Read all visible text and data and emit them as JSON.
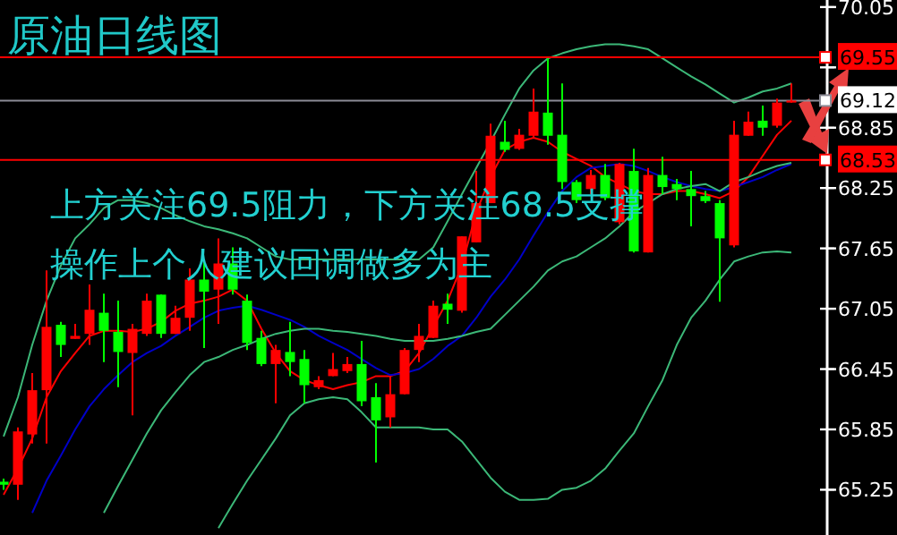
{
  "chart_data": {
    "type": "candlestick",
    "title": "原油日线图",
    "annotations": [
      "上方关注69.5阻力，下方关注68.5支撑",
      "操作上个人建议回调做多为主"
    ],
    "categories": [
      null,
      null,
      null,
      null,
      null,
      null,
      null,
      null,
      null,
      null,
      null,
      null,
      null,
      null,
      null,
      null,
      null,
      null,
      null,
      null,
      null,
      null,
      null,
      null,
      null,
      null,
      null,
      null,
      null,
      null,
      null,
      null,
      null,
      null,
      null,
      null,
      null,
      null,
      null,
      null,
      null,
      null,
      null,
      null,
      null,
      null,
      null,
      null,
      null,
      null,
      null,
      null,
      null,
      null,
      null,
      null
    ],
    "ohlc": [
      [
        65.33,
        65.36,
        65.25,
        65.3
      ],
      [
        65.3,
        65.87,
        65.15,
        65.83
      ],
      [
        65.8,
        66.41,
        65.71,
        66.24
      ],
      [
        66.24,
        67.43,
        65.71,
        66.87
      ],
      [
        66.89,
        66.92,
        66.57,
        66.69
      ],
      [
        66.75,
        66.9,
        66.75,
        66.78
      ],
      [
        66.8,
        67.29,
        66.69,
        67.04
      ],
      [
        67.01,
        67.2,
        66.52,
        66.83
      ],
      [
        66.82,
        67.13,
        66.27,
        66.62
      ],
      [
        66.61,
        66.9,
        65.99,
        66.85
      ],
      [
        66.8,
        67.2,
        66.78,
        67.13
      ],
      [
        67.19,
        67.19,
        66.76,
        66.8
      ],
      [
        66.8,
        67.08,
        66.8,
        66.96
      ],
      [
        66.96,
        67.45,
        66.83,
        67.34
      ],
      [
        67.34,
        67.54,
        66.66,
        67.22
      ],
      [
        67.24,
        67.75,
        66.9,
        67.5
      ],
      [
        67.5,
        67.66,
        67.19,
        67.24
      ],
      [
        67.13,
        67.19,
        66.64,
        66.71
      ],
      [
        66.76,
        66.83,
        66.48,
        66.5
      ],
      [
        66.5,
        66.69,
        66.11,
        66.64
      ],
      [
        66.62,
        66.92,
        66.38,
        66.52
      ],
      [
        66.55,
        66.64,
        66.11,
        66.29
      ],
      [
        66.27,
        66.38,
        66.25,
        66.34
      ],
      [
        66.38,
        66.61,
        66.38,
        66.45
      ],
      [
        66.43,
        66.57,
        66.41,
        66.5
      ],
      [
        66.5,
        66.73,
        66.08,
        66.13
      ],
      [
        66.17,
        66.31,
        65.52,
        65.94
      ],
      [
        65.97,
        66.38,
        65.87,
        66.2
      ],
      [
        66.2,
        66.66,
        66.2,
        66.64
      ],
      [
        66.64,
        66.9,
        66.52,
        66.78
      ],
      [
        66.76,
        67.13,
        66.76,
        67.08
      ],
      [
        67.1,
        67.2,
        66.9,
        67.04
      ],
      [
        67.03,
        67.77,
        67.01,
        67.77
      ],
      [
        67.71,
        68.42,
        67.71,
        68.1
      ],
      [
        68.1,
        68.89,
        68.1,
        68.77
      ],
      [
        68.71,
        68.92,
        68.61,
        68.63
      ],
      [
        68.64,
        68.84,
        68.63,
        68.78
      ],
      [
        68.77,
        69.24,
        68.75,
        69.01
      ],
      [
        69.0,
        69.54,
        68.68,
        68.77
      ],
      [
        68.78,
        69.29,
        68.24,
        68.31
      ],
      [
        68.31,
        68.33,
        68.1,
        68.13
      ],
      [
        68.24,
        68.43,
        68.19,
        68.38
      ],
      [
        68.38,
        68.49,
        68.13,
        68.15
      ],
      [
        67.91,
        68.5,
        67.89,
        68.49
      ],
      [
        68.42,
        68.64,
        67.61,
        67.62
      ],
      [
        67.61,
        68.45,
        67.61,
        68.38
      ],
      [
        68.38,
        68.56,
        68.19,
        68.26
      ],
      [
        68.29,
        68.34,
        68.13,
        68.24
      ],
      [
        68.24,
        68.42,
        67.87,
        68.17
      ],
      [
        68.17,
        68.22,
        68.1,
        68.12
      ],
      [
        68.1,
        68.13,
        67.12,
        67.75
      ],
      [
        67.68,
        68.92,
        67.66,
        68.78
      ],
      [
        68.77,
        69.01,
        68.77,
        68.91
      ],
      [
        68.92,
        69.07,
        68.77,
        68.85
      ],
      [
        68.87,
        69.14,
        68.85,
        69.1
      ],
      [
        69.1,
        69.29,
        69.1,
        69.12
      ]
    ],
    "colors": [
      "#00ff00",
      "#ff0000",
      "#ff0000",
      "#ff0000",
      "#00ff00",
      "#ff0000",
      "#ff0000",
      "#00ff00",
      "#00ff00",
      "#ff0000",
      "#ff0000",
      "#00ff00",
      "#ff0000",
      "#ff0000",
      "#00ff00",
      "#ff0000",
      "#00ff00",
      "#00ff00",
      "#00ff00",
      "#ff0000",
      "#00ff00",
      "#00ff00",
      "#ff0000",
      "#ff0000",
      "#ff0000",
      "#00ff00",
      "#00ff00",
      "#ff0000",
      "#ff0000",
      "#ff0000",
      "#ff0000",
      "#00ff00",
      "#ff0000",
      "#ff0000",
      "#ff0000",
      "#00ff00",
      "#ff0000",
      "#ff0000",
      "#00ff00",
      "#00ff00",
      "#00ff00",
      "#ff0000",
      "#00ff00",
      "#ff0000",
      "#00ff00",
      "#ff0000",
      "#00ff00",
      "#00ff00",
      "#00ff00",
      "#00ff00",
      "#00ff00",
      "#ff0000",
      "#ff0000",
      "#00ff00",
      "#ff0000",
      "#ff0000"
    ],
    "series": [
      {
        "type": "line",
        "color": "#ff0000",
        "values": [
          65.2,
          65.46,
          65.76,
          66.17,
          66.43,
          66.61,
          66.78,
          66.83,
          66.83,
          66.82,
          66.85,
          66.92,
          67.03,
          67.1,
          67.13,
          67.17,
          67.24,
          67.13,
          66.85,
          66.61,
          66.43,
          66.34,
          66.29,
          66.25,
          66.29,
          66.32,
          66.38,
          66.38,
          66.43,
          66.61,
          66.87,
          67.13,
          67.48,
          68.01,
          68.36,
          68.63,
          68.71,
          68.75,
          68.71,
          68.61,
          68.54,
          68.47,
          68.36,
          68.29,
          68.22,
          68.19,
          68.19,
          68.22,
          68.22,
          68.19,
          68.15,
          68.22,
          68.36,
          68.57,
          68.78,
          68.92
        ]
      },
      {
        "type": "line",
        "color": "#0000c8",
        "values": [
          null,
          null,
          65.02,
          65.34,
          65.59,
          65.85,
          66.08,
          66.25,
          66.39,
          66.52,
          66.61,
          66.68,
          66.78,
          66.87,
          66.96,
          67.03,
          67.06,
          67.08,
          67.04,
          66.99,
          66.94,
          66.87,
          66.78,
          66.71,
          66.64,
          66.55,
          66.46,
          66.39,
          66.41,
          66.45,
          66.55,
          66.68,
          66.78,
          66.96,
          67.17,
          67.34,
          67.54,
          67.78,
          68.01,
          68.22,
          68.36,
          68.45,
          68.47,
          68.49,
          68.47,
          68.42,
          68.36,
          68.31,
          68.27,
          68.24,
          68.22,
          68.26,
          68.31,
          68.36,
          68.43,
          68.49
        ]
      },
      {
        "type": "line",
        "color": "#3cb878",
        "values": [
          65.78,
          66.17,
          66.69,
          67.13,
          67.48,
          67.75,
          67.89,
          68.05,
          68.13,
          68.13,
          68.1,
          68.05,
          67.98,
          67.92,
          67.87,
          67.84,
          67.8,
          67.75,
          67.66,
          67.57,
          67.54,
          67.54,
          67.54,
          67.54,
          67.54,
          67.54,
          67.54,
          67.54,
          67.54,
          67.54,
          67.66,
          67.92,
          68.19,
          68.45,
          68.71,
          68.98,
          69.24,
          69.42,
          69.54,
          69.59,
          69.63,
          69.66,
          69.68,
          69.68,
          69.66,
          69.63,
          69.54,
          69.45,
          69.36,
          69.28,
          69.19,
          69.1,
          69.15,
          69.21,
          69.24,
          69.29
        ]
      },
      {
        "type": "line",
        "color": "#3cb878",
        "values": [
          null,
          null,
          null,
          null,
          null,
          null,
          null,
          65.02,
          65.29,
          65.55,
          65.81,
          66.04,
          66.22,
          66.39,
          66.52,
          66.57,
          66.64,
          66.69,
          66.75,
          66.8,
          66.83,
          66.85,
          66.85,
          66.83,
          66.82,
          66.8,
          66.78,
          66.75,
          66.73,
          66.73,
          66.73,
          66.75,
          66.78,
          66.82,
          66.85,
          66.99,
          67.13,
          67.27,
          67.43,
          67.52,
          67.57,
          67.66,
          67.75,
          67.87,
          68.01,
          68.1,
          68.19,
          68.24,
          68.27,
          68.29,
          68.22,
          68.31,
          68.36,
          68.42,
          68.47,
          68.5
        ]
      },
      {
        "type": "line",
        "color": "#3cb878",
        "values": [
          null,
          null,
          null,
          null,
          null,
          null,
          null,
          null,
          null,
          null,
          null,
          null,
          null,
          null,
          null,
          64.87,
          65.11,
          65.34,
          65.55,
          65.76,
          65.99,
          66.11,
          66.15,
          66.17,
          66.15,
          66.02,
          65.87,
          65.87,
          65.87,
          65.87,
          65.85,
          65.85,
          65.73,
          65.55,
          65.37,
          65.23,
          65.15,
          65.15,
          65.16,
          65.25,
          65.27,
          65.34,
          65.46,
          65.64,
          65.81,
          66.08,
          66.34,
          66.69,
          66.96,
          67.13,
          67.34,
          67.52,
          67.57,
          67.61,
          67.62,
          67.61
        ]
      }
    ],
    "ylim": [
      64.8,
      70.12
    ],
    "yticks": [
      70.05,
      {
        "value": 69.45,
        "label": null
      },
      68.85,
      68.25,
      67.65,
      67.05,
      66.45,
      65.85,
      65.25
    ],
    "ref_lines": [
      {
        "axis": "y",
        "value": 69.55,
        "label": "69.55",
        "color": "#ff0000"
      },
      {
        "axis": "y",
        "value": 69.12,
        "label": "69.12",
        "color": "#8c8c96"
      },
      {
        "axis": "y",
        "value": 68.53,
        "label": "68.53",
        "color": "#ff0000"
      }
    ]
  }
}
